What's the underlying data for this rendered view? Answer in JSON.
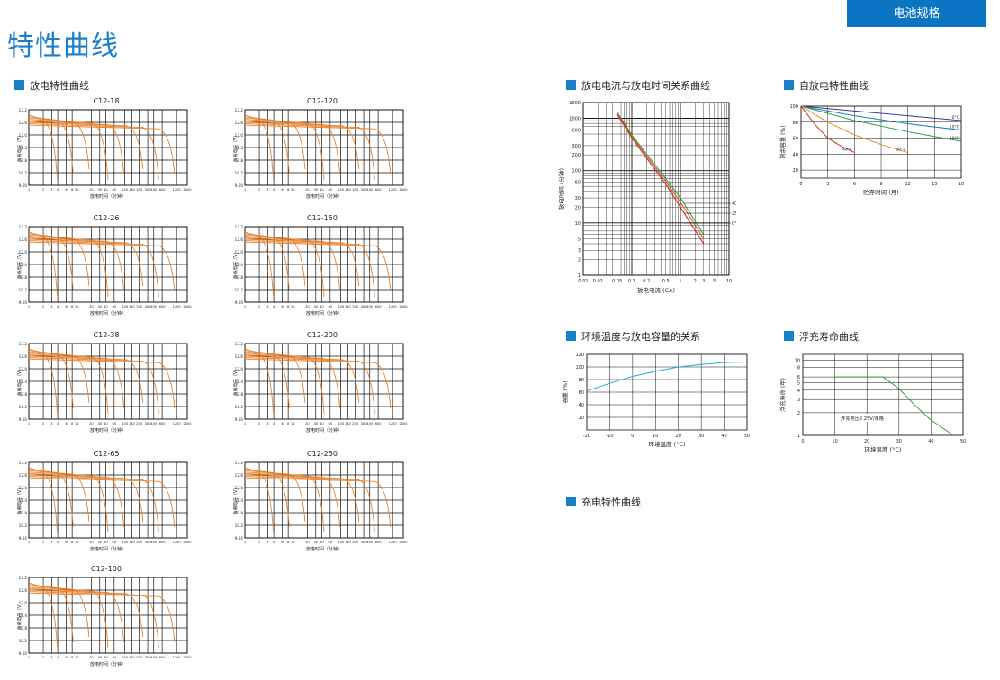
{
  "header": {
    "tab_label": "电池规格",
    "title": "特性曲线"
  },
  "sections": {
    "discharge": "放电特性曲线",
    "current_time": "放电电流与放电时间关系曲线",
    "self_discharge": "自放电特性曲线",
    "temp_capacity": "环境温度与放电容量的关系",
    "float_life": "浮充寿命曲线",
    "charge": "充电特性曲线"
  },
  "discharge_panels": [
    {
      "title": "C12-18",
      "ylabel": "负载电压（V）",
      "xlabel": "放电时间（分钟）",
      "yticks": [
        "13.2",
        "12.6",
        "12.0",
        "11.4",
        "10.8",
        "10.2",
        "9.60"
      ]
    },
    {
      "title": "C12-26",
      "ylabel": "负载电压（V）",
      "xlabel": "放电时间（分钟）",
      "yticks": [
        "13.2",
        "12.6",
        "12.0",
        "11.4",
        "10.8",
        "10.2",
        "9.60"
      ]
    },
    {
      "title": "C12-38",
      "ylabel": "负载电压（V）",
      "xlabel": "放电时间（分钟）",
      "yticks": [
        "13.2",
        "12.6",
        "12.0",
        "11.4",
        "10.8",
        "10.2",
        "9.60"
      ]
    },
    {
      "title": "C12-65",
      "ylabel": "负载电压（V）",
      "xlabel": "放电时间（分钟）",
      "yticks": [
        "13.2",
        "12.6",
        "12.0",
        "11.4",
        "10.8",
        "10.2",
        "9.60"
      ]
    },
    {
      "title": "C12-100",
      "ylabel": "负载电压（V）",
      "xlabel": "放电时间（分钟）",
      "yticks": [
        "13.2",
        "12.6",
        "12.0",
        "11.4",
        "10.8",
        "10.2",
        "9.60"
      ]
    },
    {
      "title": "C12-120",
      "ylabel": "负载电压（V）",
      "xlabel": "放电时间（分钟）",
      "yticks": [
        "13.2",
        "12.6",
        "12.0",
        "11.4",
        "10.8",
        "10.2",
        "9.60"
      ]
    },
    {
      "title": "C12-150",
      "ylabel": "负载电压（V）",
      "xlabel": "放电时间（分钟）",
      "yticks": [
        "13.2",
        "12.6",
        "12.0",
        "11.4",
        "10.8",
        "10.2",
        "9.60"
      ]
    },
    {
      "title": "C12-200",
      "ylabel": "负载电压（V）",
      "xlabel": "放电时间（分钟）",
      "yticks": [
        "13.2",
        "12.6",
        "12.0",
        "11.4",
        "10.8",
        "10.2",
        "9.60"
      ]
    },
    {
      "title": "C12-250",
      "ylabel": "负载电压（V）",
      "xlabel": "放电时间（分钟）",
      "yticks": [
        "13.2",
        "12.6",
        "12.0",
        "11.4",
        "10.8",
        "10.2",
        "9.60"
      ]
    }
  ],
  "discharge_xticks": [
    "1",
    "2",
    "3",
    "4",
    "6",
    "8",
    "10",
    "20",
    "30",
    "40",
    "60",
    "100",
    "140",
    "200",
    "300",
    "400",
    "600",
    "1200",
    "2000"
  ],
  "chart_data": [
    {
      "type": "line",
      "id": "current_time",
      "xlabel": "放电电流 (CA)",
      "ylabel": "放电时间 (分钟)",
      "xticks": [
        "0.01",
        "0.02",
        "0.05",
        "0.1",
        "0.2",
        "0.5",
        "1",
        "2",
        "3",
        "5",
        "10"
      ],
      "yticks": [
        "2000",
        "1000",
        "600",
        "300",
        "200",
        "100",
        "60",
        "30",
        "20",
        "10",
        "5",
        "3",
        "2",
        "1"
      ],
      "x_scale": "log",
      "y_scale": "log",
      "series": [
        {
          "name": "40°C",
          "color": "#2e9e3e",
          "x": [
            0.05,
            0.1,
            0.5,
            1,
            3
          ],
          "y": [
            1300,
            480,
            70,
            30,
            6
          ]
        },
        {
          "name": "25°C",
          "color": "#d85a2a",
          "x": [
            0.05,
            0.1,
            0.5,
            1,
            3
          ],
          "y": [
            1250,
            450,
            62,
            25,
            5
          ]
        },
        {
          "name": "0°C",
          "color": "#c82828",
          "x": [
            0.05,
            0.1,
            0.5,
            1,
            3
          ],
          "y": [
            1200,
            420,
            55,
            20,
            4
          ]
        }
      ]
    },
    {
      "type": "line",
      "id": "self_discharge",
      "xlabel": "贮存时间 (月)",
      "ylabel": "剩余容量 (%)",
      "xticks": [
        "0",
        "3",
        "6",
        "9",
        "12",
        "15",
        "18"
      ],
      "yticks": [
        "100",
        "80",
        "60",
        "40",
        "20"
      ],
      "xlim": [
        0,
        18
      ],
      "ylim": [
        10,
        100
      ],
      "series": [
        {
          "name": "0°C",
          "color": "#3a3aa0",
          "x": [
            0,
            6,
            12,
            18
          ],
          "y": [
            100,
            94,
            88,
            82
          ]
        },
        {
          "name": "10°C",
          "color": "#1a7fc8",
          "x": [
            0,
            6,
            12,
            18
          ],
          "y": [
            100,
            88,
            78,
            70
          ]
        },
        {
          "name": "20°C",
          "color": "#2e9e3e",
          "x": [
            0,
            6,
            12,
            18
          ],
          "y": [
            100,
            82,
            68,
            56
          ]
        },
        {
          "name": "30°C",
          "color": "#e09030",
          "x": [
            0,
            3,
            6,
            9,
            12
          ],
          "y": [
            100,
            80,
            64,
            52,
            42
          ]
        },
        {
          "name": "40°C",
          "color": "#d02828",
          "x": [
            0,
            1.5,
            3,
            4.5,
            6
          ],
          "y": [
            100,
            78,
            60,
            50,
            42
          ]
        }
      ]
    },
    {
      "type": "line",
      "id": "temp_capacity",
      "xlabel": "环境温度 (°C)",
      "ylabel": "容量 (%)",
      "xticks": [
        "-20",
        "-10",
        "0",
        "10",
        "20",
        "30",
        "40",
        "50"
      ],
      "yticks": [
        "120",
        "100",
        "80",
        "60",
        "40",
        "20"
      ],
      "xlim": [
        -20,
        50
      ],
      "ylim": [
        0,
        120
      ],
      "series": [
        {
          "color": "#2aa8d8",
          "x": [
            -20,
            -10,
            0,
            10,
            20,
            30,
            40,
            50
          ],
          "y": [
            62,
            74,
            85,
            93,
            100,
            104,
            107,
            108
          ]
        }
      ]
    },
    {
      "type": "line",
      "id": "float_life",
      "xlabel": "环境温度 (°C)",
      "ylabel": "浮充寿命 (年)",
      "annotation": "浮充电压2.25V/单格",
      "xticks": [
        "0",
        "10",
        "20",
        "30",
        "40",
        "50"
      ],
      "yticks": [
        "10",
        "8",
        "6",
        "5",
        "4",
        "3",
        "2",
        "1"
      ],
      "xlim": [
        0,
        50
      ],
      "y_scale": "log",
      "ylim": [
        1,
        12
      ],
      "series": [
        {
          "color": "#2e9e3e",
          "x": [
            10,
            20,
            25,
            30,
            35,
            40,
            47
          ],
          "y": [
            6,
            6,
            6,
            4.2,
            2.5,
            1.6,
            1
          ]
        }
      ]
    }
  ]
}
